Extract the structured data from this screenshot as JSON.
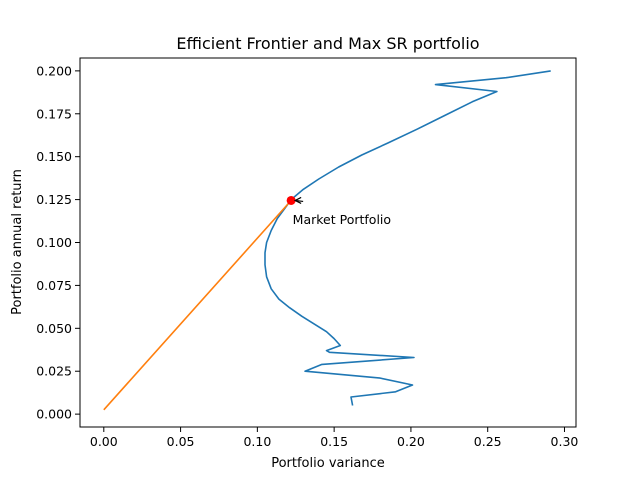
{
  "chart_data": {
    "type": "line",
    "title": "Efficient Frontier and Max SR portfolio",
    "xlabel": "Portfolio variance",
    "ylabel": "Portfolio annual return",
    "xlim": [
      -0.0155,
      0.3075
    ],
    "ylim": [
      -0.0075,
      0.2075
    ],
    "x_ticks": [
      0.0,
      0.05,
      0.1,
      0.15,
      0.2,
      0.25,
      0.3
    ],
    "x_tick_labels": [
      "0.00",
      "0.05",
      "0.10",
      "0.15",
      "0.20",
      "0.25",
      "0.30"
    ],
    "y_ticks": [
      0.0,
      0.025,
      0.05,
      0.075,
      0.1,
      0.125,
      0.15,
      0.175,
      0.2
    ],
    "y_tick_labels": [
      "0.000",
      "0.025",
      "0.050",
      "0.075",
      "0.100",
      "0.125",
      "0.150",
      "0.175",
      "0.200"
    ],
    "grid": false,
    "series": [
      {
        "color": "#1f77b4",
        "points": [
          [
            0.162,
            0.005
          ],
          [
            0.161,
            0.01
          ],
          [
            0.19,
            0.013
          ],
          [
            0.201,
            0.017
          ],
          [
            0.18,
            0.021
          ],
          [
            0.131,
            0.025
          ],
          [
            0.142,
            0.029
          ],
          [
            0.202,
            0.033
          ],
          [
            0.147,
            0.036
          ],
          [
            0.145,
            0.037
          ],
          [
            0.154,
            0.04
          ],
          [
            0.15,
            0.044
          ],
          [
            0.145,
            0.048
          ],
          [
            0.138,
            0.052
          ],
          [
            0.129,
            0.057
          ],
          [
            0.121,
            0.062
          ],
          [
            0.114,
            0.067
          ],
          [
            0.109,
            0.073
          ],
          [
            0.106,
            0.08
          ],
          [
            0.105,
            0.087
          ],
          [
            0.105,
            0.094
          ],
          [
            0.106,
            0.1
          ],
          [
            0.109,
            0.107
          ],
          [
            0.113,
            0.114
          ],
          [
            0.118,
            0.12
          ],
          [
            0.122,
            0.125
          ],
          [
            0.13,
            0.131
          ],
          [
            0.14,
            0.137
          ],
          [
            0.153,
            0.144
          ],
          [
            0.168,
            0.151
          ],
          [
            0.185,
            0.158
          ],
          [
            0.204,
            0.166
          ],
          [
            0.222,
            0.174
          ],
          [
            0.24,
            0.182
          ],
          [
            0.256,
            0.188
          ],
          [
            0.216,
            0.192
          ],
          [
            0.262,
            0.196
          ],
          [
            0.291,
            0.2
          ]
        ]
      },
      {
        "color": "#ff7f0e",
        "points": [
          [
            0.0,
            0.0025
          ],
          [
            0.122,
            0.1245
          ]
        ]
      }
    ],
    "highlight_point": {
      "x": 0.122,
      "y": 0.1245,
      "color": "#ff0000"
    },
    "annotation": {
      "text": "Market Portfolio",
      "x": 0.122,
      "y": 0.1245,
      "text_x": 0.123,
      "text_y": 0.113
    }
  }
}
